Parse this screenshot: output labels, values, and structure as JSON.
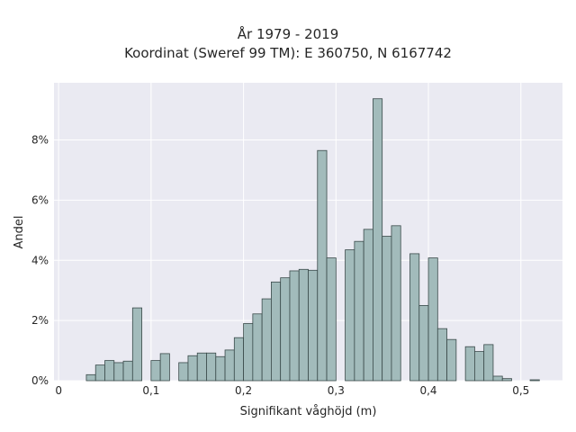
{
  "chart_data": {
    "type": "bar",
    "title_line1": "År 1979 - 2019",
    "title_line2": "Koordinat (Sweref 99 TM): E 360750, N 6167742",
    "xlabel": "Signifikant våghöjd (m)",
    "ylabel": "Andel",
    "xlim": [
      -0.005,
      0.545
    ],
    "ylim": [
      0,
      9.9
    ],
    "x_ticks": [
      0,
      0.1,
      0.2,
      0.3,
      0.4,
      0.5
    ],
    "x_tick_labels": [
      "0",
      "0,1",
      "0,2",
      "0,3",
      "0,4",
      "0,5"
    ],
    "y_ticks": [
      0,
      2,
      4,
      6,
      8
    ],
    "y_tick_labels": [
      "0%",
      "2%",
      "4%",
      "6%",
      "8%"
    ],
    "bin_width": 0.01,
    "bin_starts": [
      0.03,
      0.04,
      0.05,
      0.06,
      0.07,
      0.08,
      0.1,
      0.11,
      0.13,
      0.14,
      0.15,
      0.16,
      0.17,
      0.18,
      0.19,
      0.2,
      0.21,
      0.22,
      0.23,
      0.24,
      0.25,
      0.26,
      0.27,
      0.28,
      0.29,
      0.31,
      0.32,
      0.33,
      0.34,
      0.35,
      0.36,
      0.38,
      0.39,
      0.4,
      0.41,
      0.42,
      0.44,
      0.45,
      0.46,
      0.47,
      0.48,
      0.51
    ],
    "values": [
      0.2,
      0.52,
      0.67,
      0.6,
      0.65,
      2.42,
      0.67,
      0.9,
      0.6,
      0.83,
      0.92,
      0.92,
      0.8,
      1.02,
      1.43,
      1.9,
      2.22,
      2.72,
      3.28,
      3.42,
      3.65,
      3.7,
      3.67,
      7.65,
      4.08,
      4.35,
      4.63,
      5.03,
      9.37,
      4.8,
      5.15,
      4.22,
      2.5,
      4.08,
      1.73,
      1.37,
      1.13,
      0.97,
      1.2,
      0.15,
      0.07,
      0.03
    ],
    "grid": true,
    "legend": "none"
  },
  "colors": {
    "plot_bg": "#eaeaf2",
    "bar_fill": "#a2bbbb",
    "bar_edge": "#3a4a4a"
  }
}
